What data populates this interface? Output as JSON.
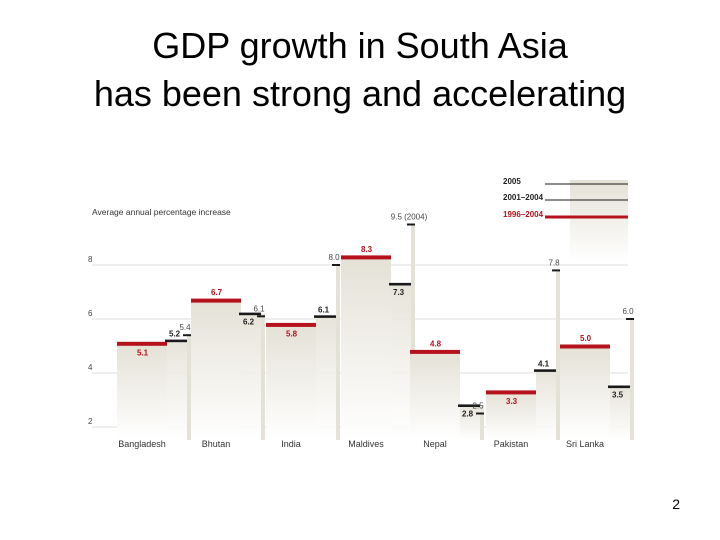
{
  "slide": {
    "title_line1": "GDP growth in South Asia",
    "title_line2": "has been strong and accelerating",
    "page_number": "2"
  },
  "colors": {
    "series_1996_2004": "#b5121b",
    "series_2001_2004": "#1a1a1a",
    "series_2005": "#1a1a1a",
    "fill": "#e4e1d6",
    "grid": "#dddddd",
    "text": "#444444"
  },
  "chart_data": {
    "type": "bar",
    "ylabel": "Average annual percentage increase",
    "ylim": [
      2,
      10
    ],
    "yticks": [
      "2",
      "4",
      "6",
      "8"
    ],
    "grid": true,
    "legend_position": "top-right",
    "categories": [
      "Bangladesh",
      "Bhutan",
      "India",
      "Maldives",
      "Nepal",
      "Pakistan",
      "Sri Lanka"
    ],
    "series": [
      {
        "name": "1996–2004",
        "values": [
          5.1,
          6.7,
          5.8,
          8.3,
          4.8,
          3.3,
          5.0
        ],
        "labels": [
          "5.1",
          "6.7",
          "5.8",
          "8.3",
          "4.8",
          "3.3",
          "5.0"
        ]
      },
      {
        "name": "2001–2004",
        "values": [
          5.2,
          6.2,
          6.1,
          7.3,
          2.8,
          4.1,
          3.5
        ],
        "labels": [
          "5.2",
          "6.2",
          "6.1",
          "7.3",
          "2.8",
          "4.1",
          "3.5"
        ]
      },
      {
        "name": "2005",
        "values": [
          5.4,
          6.1,
          8.0,
          9.5,
          2.5,
          7.8,
          6.0
        ],
        "labels": [
          "5.4",
          "6.1",
          "8.0",
          "9.5 (2004)",
          "2.5",
          "7.8",
          "6.0"
        ]
      }
    ]
  }
}
